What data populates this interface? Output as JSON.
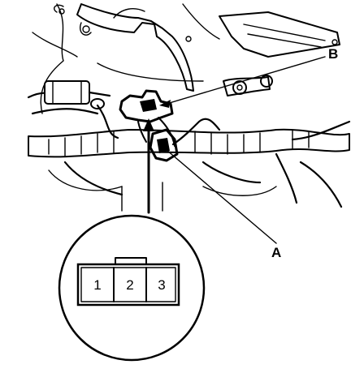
{
  "callouts": {
    "a_label": "A",
    "b_label": "B"
  },
  "connector": {
    "pins": [
      "1",
      "2",
      "3"
    ]
  },
  "icons": {
    "connector_face": "three-pin-connector-face-icon",
    "bracket": "mounting-bracket-icon",
    "harness": "wire-harness-icon"
  }
}
